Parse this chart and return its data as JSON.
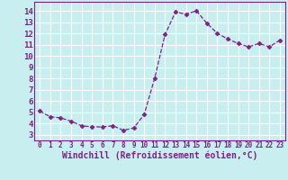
{
  "x": [
    0,
    1,
    2,
    3,
    4,
    5,
    6,
    7,
    8,
    9,
    10,
    11,
    12,
    13,
    14,
    15,
    16,
    17,
    18,
    19,
    20,
    21,
    22,
    23
  ],
  "y": [
    5.1,
    4.6,
    4.5,
    4.2,
    3.8,
    3.7,
    3.7,
    3.8,
    3.4,
    3.6,
    4.8,
    8.0,
    11.9,
    13.9,
    13.7,
    14.0,
    12.9,
    12.0,
    11.5,
    11.1,
    10.8,
    11.1,
    10.8,
    11.4
  ],
  "line_color": "#7b2382",
  "marker": "D",
  "marker_size": 2.5,
  "bg_color": "#c8eef0",
  "grid_color": "#ffffff",
  "xlabel": "Windchill (Refroidissement éolien,°C)",
  "xlabel_color": "#7b2382",
  "xlabel_fontsize": 7,
  "ytick_labels": [
    "3",
    "4",
    "5",
    "6",
    "7",
    "8",
    "9",
    "10",
    "11",
    "12",
    "13",
    "14"
  ],
  "ylim": [
    2.5,
    14.8
  ],
  "xlim": [
    -0.5,
    23.5
  ],
  "xtick_fontsize": 5.5,
  "ytick_fontsize": 6.5,
  "line_color_hex": "#7b2382"
}
